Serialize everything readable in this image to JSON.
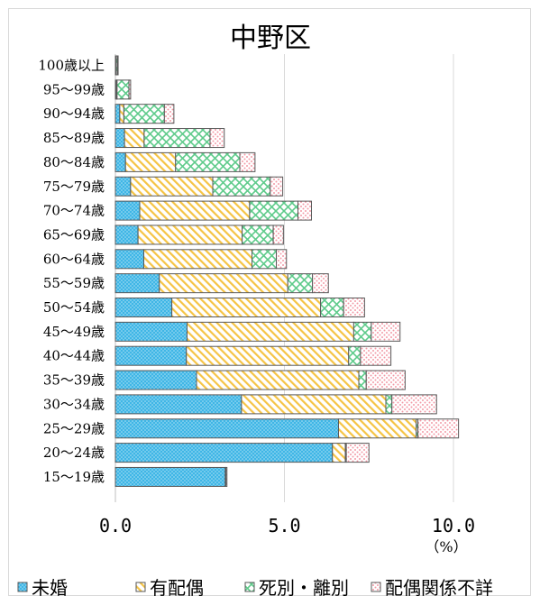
{
  "chart_data": {
    "type": "bar",
    "orientation": "horizontal",
    "stacked": true,
    "title": "中野区",
    "unit_label": "（%）",
    "xlim": [
      0,
      11
    ],
    "x_ticks": [
      "0.0",
      "5.0",
      "10.0"
    ],
    "grid": true,
    "legend_position": "bottom",
    "categories": [
      "100歳以上",
      "95～99歳",
      "90～94歳",
      "85～89歳",
      "80～84歳",
      "75～79歳",
      "70～74歳",
      "65～69歳",
      "60～64歳",
      "55～59歳",
      "50～54歳",
      "45～49歳",
      "40～44歳",
      "35～39歳",
      "30～34歳",
      "25～29歳",
      "20～24歳",
      "15～19歳"
    ],
    "series": [
      {
        "name": "未婚",
        "color": "#3fb6e6",
        "pattern": "dots",
        "values": [
          0.02,
          0.03,
          0.13,
          0.27,
          0.3,
          0.45,
          0.72,
          0.67,
          0.84,
          1.3,
          1.67,
          2.12,
          2.1,
          2.4,
          3.73,
          6.6,
          6.42,
          3.25
        ]
      },
      {
        "name": "有配偶",
        "color": "#f5c445",
        "pattern": "diagonal",
        "values": [
          0.0,
          0.02,
          0.12,
          0.58,
          1.48,
          2.43,
          3.25,
          3.08,
          3.2,
          3.8,
          4.4,
          4.93,
          4.8,
          4.8,
          4.27,
          2.3,
          0.38,
          0.02
        ]
      },
      {
        "name": "死別・離別",
        "color": "#5ecb8a",
        "pattern": "cross",
        "values": [
          0.04,
          0.35,
          1.2,
          1.95,
          1.9,
          1.7,
          1.43,
          0.92,
          0.72,
          0.73,
          0.68,
          0.52,
          0.35,
          0.22,
          0.18,
          0.05,
          0.03,
          0.0
        ]
      },
      {
        "name": "配偶関係不詳",
        "color": "#f29aa6",
        "pattern": "sparse-dots",
        "values": [
          0.02,
          0.05,
          0.28,
          0.42,
          0.45,
          0.37,
          0.4,
          0.3,
          0.3,
          0.47,
          0.62,
          0.85,
          0.9,
          1.15,
          1.32,
          1.2,
          0.67,
          0.03
        ]
      }
    ]
  }
}
